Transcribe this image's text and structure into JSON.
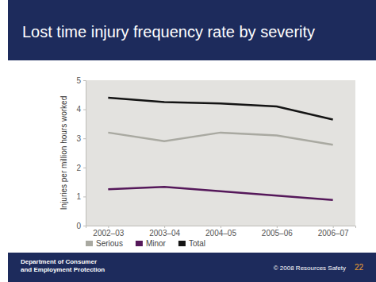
{
  "chart_data": {
    "type": "line",
    "title": "Lost time injury frequency rate by severity",
    "y_label": "Injuries per million hours worked",
    "categories": [
      "2002–03",
      "2003–04",
      "2004–05",
      "2005–06",
      "2006–07"
    ],
    "series": [
      {
        "name": "Serious",
        "color": "#a9a9a1",
        "values": [
          3.2,
          2.9,
          3.2,
          3.1,
          2.78
        ]
      },
      {
        "name": "Minor",
        "color": "#55185a",
        "values": [
          1.25,
          1.33,
          1.18,
          1.03,
          0.88
        ]
      },
      {
        "name": "Total",
        "color": "#141414",
        "values": [
          4.4,
          4.25,
          4.2,
          4.1,
          3.65
        ]
      }
    ],
    "ylim": [
      0,
      5
    ],
    "yticks": [
      0,
      1,
      2,
      3,
      4,
      5
    ],
    "grid": false,
    "legend": "bottom-left"
  },
  "footer": {
    "department": [
      "Department of Consumer",
      "and Employment Protection"
    ],
    "copyright": "© 2008 Resources Safety",
    "page": 22
  }
}
